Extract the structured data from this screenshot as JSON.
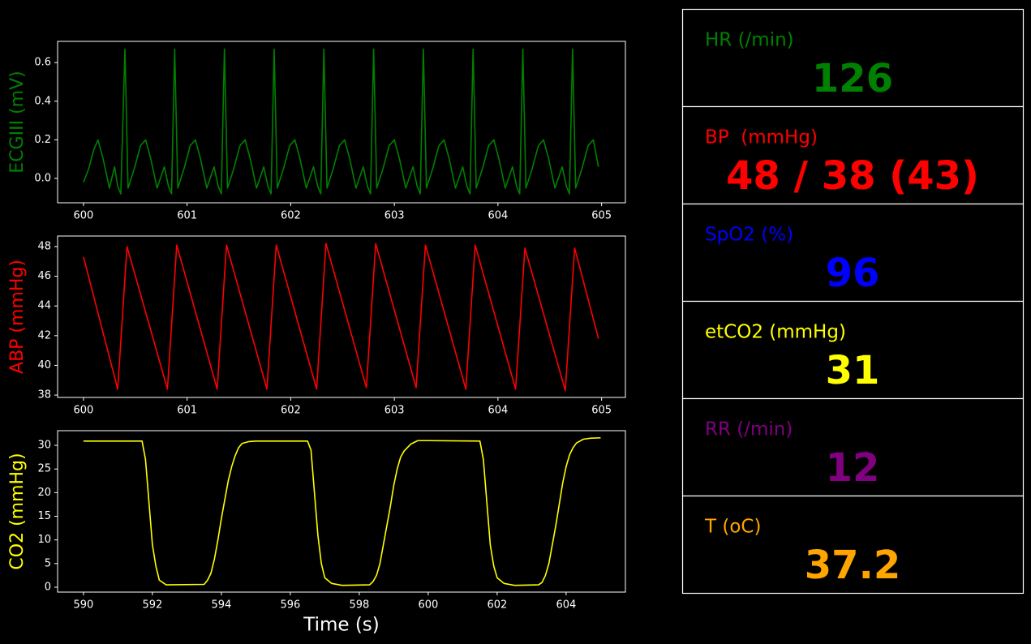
{
  "chart_data": [
    {
      "type": "line",
      "ylabel": "ECGIII (mV)",
      "color": "#008000",
      "x": [
        600,
        600.05,
        600.1,
        600.14,
        600.19,
        600.25,
        600.3,
        600.33,
        600.36,
        600.4,
        600.43,
        600.49,
        600.55,
        600.6,
        600.65,
        600.71,
        600.78,
        600.82,
        600.85,
        600.88,
        600.91,
        600.97,
        601.03,
        601.08,
        601.13,
        601.19,
        601.26,
        601.3,
        601.33,
        601.36,
        601.39,
        601.45,
        601.51,
        601.56,
        601.61,
        601.67,
        601.74,
        601.78,
        601.81,
        601.84,
        601.87,
        601.93,
        601.99,
        602.04,
        602.09,
        602.15,
        602.22,
        602.26,
        602.29,
        602.32,
        602.35,
        602.41,
        602.47,
        602.52,
        602.57,
        602.63,
        602.7,
        602.74,
        602.77,
        602.8,
        602.83,
        602.89,
        602.95,
        603,
        603.05,
        603.11,
        603.18,
        603.22,
        603.25,
        603.28,
        603.31,
        603.37,
        603.43,
        603.48,
        603.53,
        603.59,
        603.66,
        603.7,
        603.73,
        603.76,
        603.79,
        603.85,
        603.91,
        603.96,
        604.01,
        604.07,
        604.14,
        604.18,
        604.21,
        604.24,
        604.27,
        604.33,
        604.39,
        604.44,
        604.49,
        604.55,
        604.62,
        604.66,
        604.69,
        604.72,
        604.75,
        604.81,
        604.87,
        604.92,
        604.97
      ],
      "values": [
        -0.02,
        0.05,
        0.15,
        0.2,
        0.1,
        -0.05,
        0.06,
        -0.04,
        -0.08,
        0.67,
        -0.05,
        0.05,
        0.17,
        0.2,
        0.1,
        -0.05,
        0.06,
        -0.04,
        -0.08,
        0.67,
        -0.05,
        0.05,
        0.17,
        0.2,
        0.1,
        -0.05,
        0.06,
        -0.04,
        -0.08,
        0.67,
        -0.05,
        0.05,
        0.17,
        0.2,
        0.1,
        -0.05,
        0.06,
        -0.04,
        -0.08,
        0.67,
        -0.05,
        0.05,
        0.17,
        0.2,
        0.1,
        -0.05,
        0.06,
        -0.04,
        -0.08,
        0.67,
        -0.05,
        0.05,
        0.17,
        0.2,
        0.1,
        -0.05,
        0.06,
        -0.04,
        -0.08,
        0.67,
        -0.05,
        0.05,
        0.17,
        0.2,
        0.1,
        -0.05,
        0.06,
        -0.04,
        -0.08,
        0.67,
        -0.05,
        0.05,
        0.17,
        0.2,
        0.1,
        -0.05,
        0.06,
        -0.04,
        -0.08,
        0.67,
        -0.05,
        0.05,
        0.17,
        0.2,
        0.1,
        -0.05,
        0.06,
        -0.04,
        -0.08,
        0.67,
        -0.05,
        0.05,
        0.17,
        0.2,
        0.1,
        -0.05,
        0.06,
        -0.04,
        -0.08,
        0.67,
        -0.05,
        0.05,
        0.17,
        0.2,
        0.06
      ],
      "xlim": [
        599.75,
        605.23
      ],
      "xticks": [
        600,
        601,
        602,
        603,
        604,
        605
      ],
      "ylim": [
        -0.126,
        0.71
      ],
      "yticks": [
        {
          "value": 0,
          "label": "0.0"
        },
        0.2,
        0.4,
        0.6
      ]
    },
    {
      "type": "line",
      "ylabel": "ABP (mmHg)",
      "color": "#ff0000",
      "x": [
        600,
        600.33,
        600.42,
        600.81,
        600.9,
        601.29,
        601.38,
        601.77,
        601.86,
        602.25,
        602.34,
        602.73,
        602.82,
        603.21,
        603.3,
        603.69,
        603.78,
        604.17,
        604.26,
        604.65,
        604.74,
        604.97
      ],
      "values": [
        47.3,
        38.4,
        48,
        38.4,
        48.1,
        38.4,
        48.1,
        38.4,
        48.1,
        38.4,
        48.2,
        38.5,
        48.2,
        38.5,
        48.1,
        38.4,
        48.1,
        38.4,
        47.9,
        38.3,
        47.9,
        41.8
      ],
      "xlim": [
        599.75,
        605.23
      ],
      "xticks": [
        600,
        601,
        602,
        603,
        604,
        605
      ],
      "ylim": [
        37.84,
        48.71
      ],
      "yticks": [
        38,
        40,
        42,
        44,
        46,
        48
      ]
    },
    {
      "type": "line",
      "ylabel": "CO2 (mmHg)",
      "xlabel": "Time (s)",
      "color": "#ffff00",
      "x": [
        590,
        591.7,
        591.8,
        591.9,
        592,
        592.1,
        592.2,
        592.4,
        593.5,
        593.6,
        593.7,
        593.8,
        593.9,
        594,
        594.1,
        594.2,
        594.3,
        594.4,
        594.5,
        594.6,
        594.8,
        595,
        596.5,
        596.6,
        596.7,
        596.8,
        596.9,
        597,
        597.2,
        597.5,
        598.3,
        598.4,
        598.5,
        598.6,
        598.7,
        598.8,
        598.9,
        599,
        599.1,
        599.2,
        599.3,
        599.5,
        599.7,
        600,
        601.5,
        601.6,
        601.7,
        601.8,
        601.9,
        602,
        602.2,
        602.5,
        603.2,
        603.3,
        603.4,
        603.5,
        603.6,
        603.7,
        603.8,
        603.9,
        604,
        604.1,
        604.2,
        604.3,
        604.5,
        604.7,
        605
      ],
      "values": [
        30.9,
        30.9,
        27,
        18,
        9,
        4.5,
        1.5,
        0.5,
        0.6,
        1.5,
        3,
        6,
        10,
        14.5,
        18.5,
        22.5,
        25.5,
        27.8,
        29.5,
        30.4,
        30.8,
        30.9,
        30.9,
        29,
        20,
        11,
        5,
        2,
        0.8,
        0.4,
        0.5,
        1.2,
        2.5,
        5,
        9,
        13,
        17,
        21.5,
        25,
        27.5,
        28.8,
        30.3,
        31,
        31,
        30.9,
        27,
        18,
        9,
        4.5,
        2,
        0.8,
        0.4,
        0.5,
        1,
        2.5,
        5,
        9,
        13,
        17.5,
        22,
        25.5,
        28,
        29.5,
        30.5,
        31.3,
        31.5,
        31.6
      ],
      "xlim": [
        589.25,
        605.72
      ],
      "xticks": [
        590,
        592,
        594,
        596,
        598,
        600,
        602,
        604
      ],
      "ylim": [
        -1.03,
        33.1
      ],
      "yticks": [
        0,
        5,
        10,
        15,
        20,
        25,
        30
      ]
    }
  ],
  "vitals": [
    {
      "label": "HR (/min)",
      "value": "126",
      "color": "#008000"
    },
    {
      "label": "BP  (mmHg)",
      "value": "48 / 38 (43)",
      "color": "#ff0000"
    },
    {
      "label": "SpO2 (%)",
      "value": "96",
      "color": "#0000ff"
    },
    {
      "label": "etCO2 (mmHg)",
      "value": "31",
      "color": "#ffff00"
    },
    {
      "label": "RR (/min)",
      "value": "12",
      "color": "#800080"
    },
    {
      "label": "T (oC)",
      "value": "37.2",
      "color": "#ffa500"
    }
  ]
}
